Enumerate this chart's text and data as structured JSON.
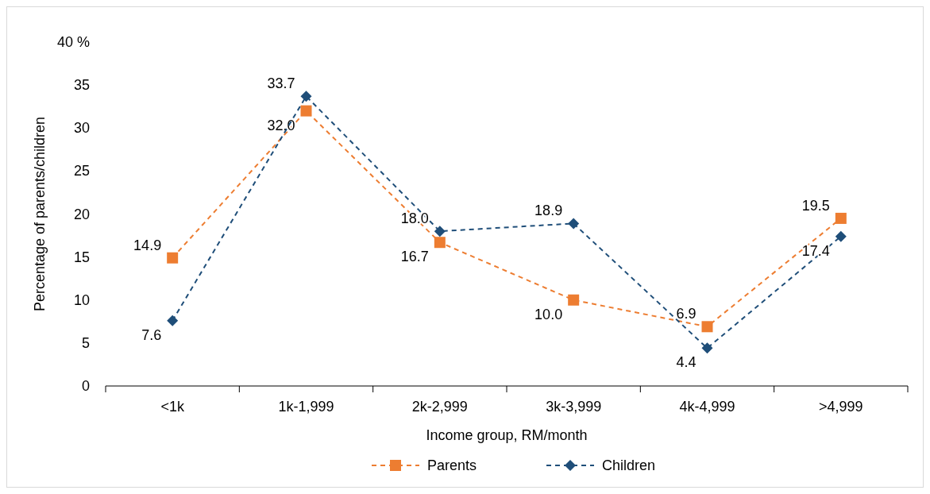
{
  "chart_data": {
    "type": "line",
    "categories": [
      "<1k",
      "1k-1,999",
      "2k-2,999",
      "3k-3,999",
      "4k-4,999",
      ">4,999"
    ],
    "series": [
      {
        "name": "Parents",
        "color": "#ed7d31",
        "marker": "square",
        "values": [
          14.9,
          32.0,
          16.7,
          10.0,
          6.9,
          19.5
        ],
        "value_labels": [
          "14.9",
          "32.0",
          "16.7",
          "10.0",
          "6.9",
          "19.5"
        ]
      },
      {
        "name": "Children",
        "color": "#1f4e79",
        "marker": "diamond",
        "values": [
          7.6,
          33.7,
          18.0,
          18.9,
          4.4,
          17.4
        ],
        "value_labels": [
          "7.6",
          "33.7",
          "18.0",
          "18.9",
          "4.4",
          "17.4"
        ]
      }
    ],
    "xlabel": "Income group, RM/month",
    "ylabel": "Percentage of parents/children",
    "ylim": [
      0,
      40
    ],
    "yticks": [
      0,
      5,
      10,
      15,
      20,
      25,
      30,
      35,
      {
        "value": 40,
        "label": "40 %"
      }
    ],
    "line_style": "dashed",
    "legend": "bottom",
    "grid": false
  }
}
